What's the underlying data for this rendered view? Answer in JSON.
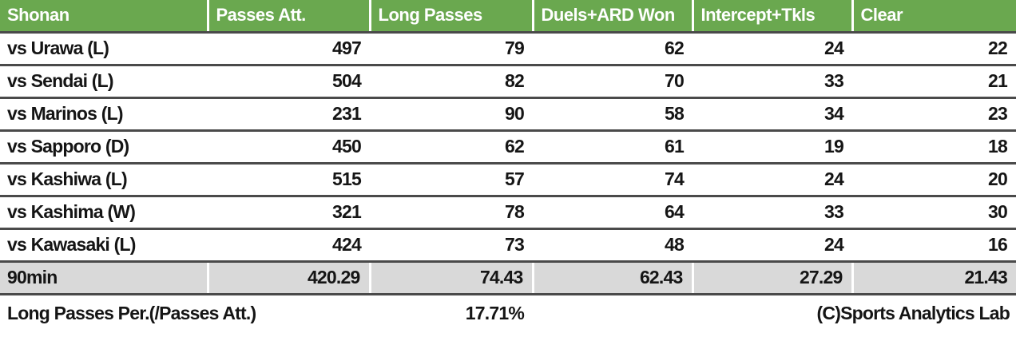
{
  "table": {
    "columns": [
      {
        "label": "Shonan"
      },
      {
        "label": "Passes Att."
      },
      {
        "label": "Long Passes"
      },
      {
        "label": "Duels+ARD Won"
      },
      {
        "label": "Intercept+Tkls"
      },
      {
        "label": "Clear"
      }
    ],
    "rows": [
      {
        "match": "vs Urawa (L)",
        "values": [
          "497",
          "79",
          "62",
          "24",
          "22"
        ]
      },
      {
        "match": "vs Sendai (L)",
        "values": [
          "504",
          "82",
          "70",
          "33",
          "21"
        ]
      },
      {
        "match": "vs Marinos (L)",
        "values": [
          "231",
          "90",
          "58",
          "34",
          "23"
        ]
      },
      {
        "match": "vs Sapporo (D)",
        "values": [
          "450",
          "62",
          "61",
          "19",
          "18"
        ]
      },
      {
        "match": "vs Kashiwa (L)",
        "values": [
          "515",
          "57",
          "74",
          "24",
          "20"
        ]
      },
      {
        "match": "vs Kashima (W)",
        "values": [
          "321",
          "78",
          "64",
          "33",
          "30"
        ]
      },
      {
        "match": "vs Kawasaki (L)",
        "values": [
          "424",
          "73",
          "48",
          "24",
          "16"
        ]
      }
    ],
    "summary": {
      "label": "90min",
      "values": [
        "420.29",
        "74.43",
        "62.43",
        "27.29",
        "21.43"
      ]
    }
  },
  "footer": {
    "label": "Long Passes Per.(/Passes Att.)",
    "value": "17.71%",
    "credit": "(C)Sports Analytics Lab"
  },
  "colors": {
    "header_bg": "#6aa84f",
    "header_text": "#ffffff",
    "summary_bg": "#d9d9d9",
    "row_line": "#4a4a4a",
    "text": "#151515"
  },
  "chart_data": {
    "type": "table",
    "title": "Shonan match stats",
    "columns": [
      "Shonan",
      "Passes Att.",
      "Long Passes",
      "Duels+ARD Won",
      "Intercept+Tkls",
      "Clear"
    ],
    "categories": [
      "vs Urawa (L)",
      "vs Sendai (L)",
      "vs Marinos (L)",
      "vs Sapporo (D)",
      "vs Kashiwa (L)",
      "vs Kashima (W)",
      "vs Kawasaki (L)",
      "90min"
    ],
    "series": [
      {
        "name": "Passes Att.",
        "values": [
          497,
          504,
          231,
          450,
          515,
          321,
          424,
          420.29
        ]
      },
      {
        "name": "Long Passes",
        "values": [
          79,
          82,
          90,
          62,
          57,
          78,
          73,
          74.43
        ]
      },
      {
        "name": "Duels+ARD Won",
        "values": [
          62,
          70,
          58,
          61,
          74,
          64,
          48,
          62.43
        ]
      },
      {
        "name": "Intercept+Tkls",
        "values": [
          24,
          33,
          34,
          19,
          24,
          33,
          24,
          27.29
        ]
      },
      {
        "name": "Clear",
        "values": [
          22,
          21,
          23,
          18,
          20,
          30,
          16,
          21.43
        ]
      }
    ],
    "annotations": [
      "Long Passes Per.(/Passes Att.) 17.71%",
      "(C)Sports Analytics Lab"
    ]
  }
}
